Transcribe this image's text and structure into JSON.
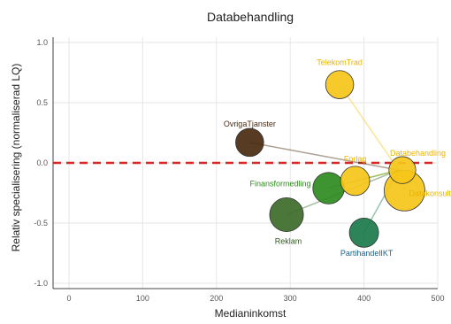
{
  "chart_data": {
    "type": "scatter",
    "title": "Databehandling",
    "xlabel": "Medianinkomst",
    "ylabel": "Relativ specialisering (normaliserad LQ)",
    "xlim": [
      0,
      500
    ],
    "ylim": [
      -1.0,
      1.0
    ],
    "xticks": [
      0,
      100,
      200,
      300,
      400,
      500
    ],
    "yticks": [
      -1.0,
      -0.5,
      0.0,
      0.5,
      1.0
    ],
    "xtick_labels": [
      "0",
      "100",
      "200",
      "300",
      "400",
      "500"
    ],
    "ytick_labels": [
      "-1.0",
      "-0.5",
      "0.0",
      "0.5",
      "1.0"
    ],
    "grid": true,
    "reference_line": {
      "y": 0.0,
      "color": "#d62728",
      "style": "dashed"
    },
    "hub": {
      "x": 447,
      "y": -0.06
    },
    "points": [
      {
        "label": "TelekomTrad",
        "x": 367,
        "y": 0.65,
        "size": 0.45,
        "color": "#f5c518",
        "label_color": "#e8b400"
      },
      {
        "label": "OvrigaTjanster",
        "x": 245,
        "y": 0.17,
        "size": 0.45,
        "color": "#4a2a10",
        "label_color": "#4a2a10"
      },
      {
        "label": "Forlag",
        "x": 388,
        "y": -0.15,
        "size": 0.5,
        "color": "#f5c518",
        "label_color": "#e8b400"
      },
      {
        "label": "Databehandling",
        "x": 452,
        "y": -0.06,
        "size": 0.4,
        "color": "#f5c518",
        "label_color": "#e8b400"
      },
      {
        "label": "Finansformedling",
        "x": 352,
        "y": -0.21,
        "size": 0.6,
        "color": "#2e8b1e",
        "label_color": "#2e8b1e"
      },
      {
        "label": "Datakonsult",
        "x": 455,
        "y": -0.23,
        "size": 1.0,
        "color": "#f5c518",
        "label_color": "#e8b400"
      },
      {
        "label": "Reklam",
        "x": 295,
        "y": -0.43,
        "size": 0.7,
        "color": "#3d6b2a",
        "label_color": "#2f5a22"
      },
      {
        "label": "PartihandelIKT",
        "x": 400,
        "y": -0.58,
        "size": 0.5,
        "color": "#1a7a4a",
        "label_color": "#1a5f8a"
      }
    ]
  }
}
